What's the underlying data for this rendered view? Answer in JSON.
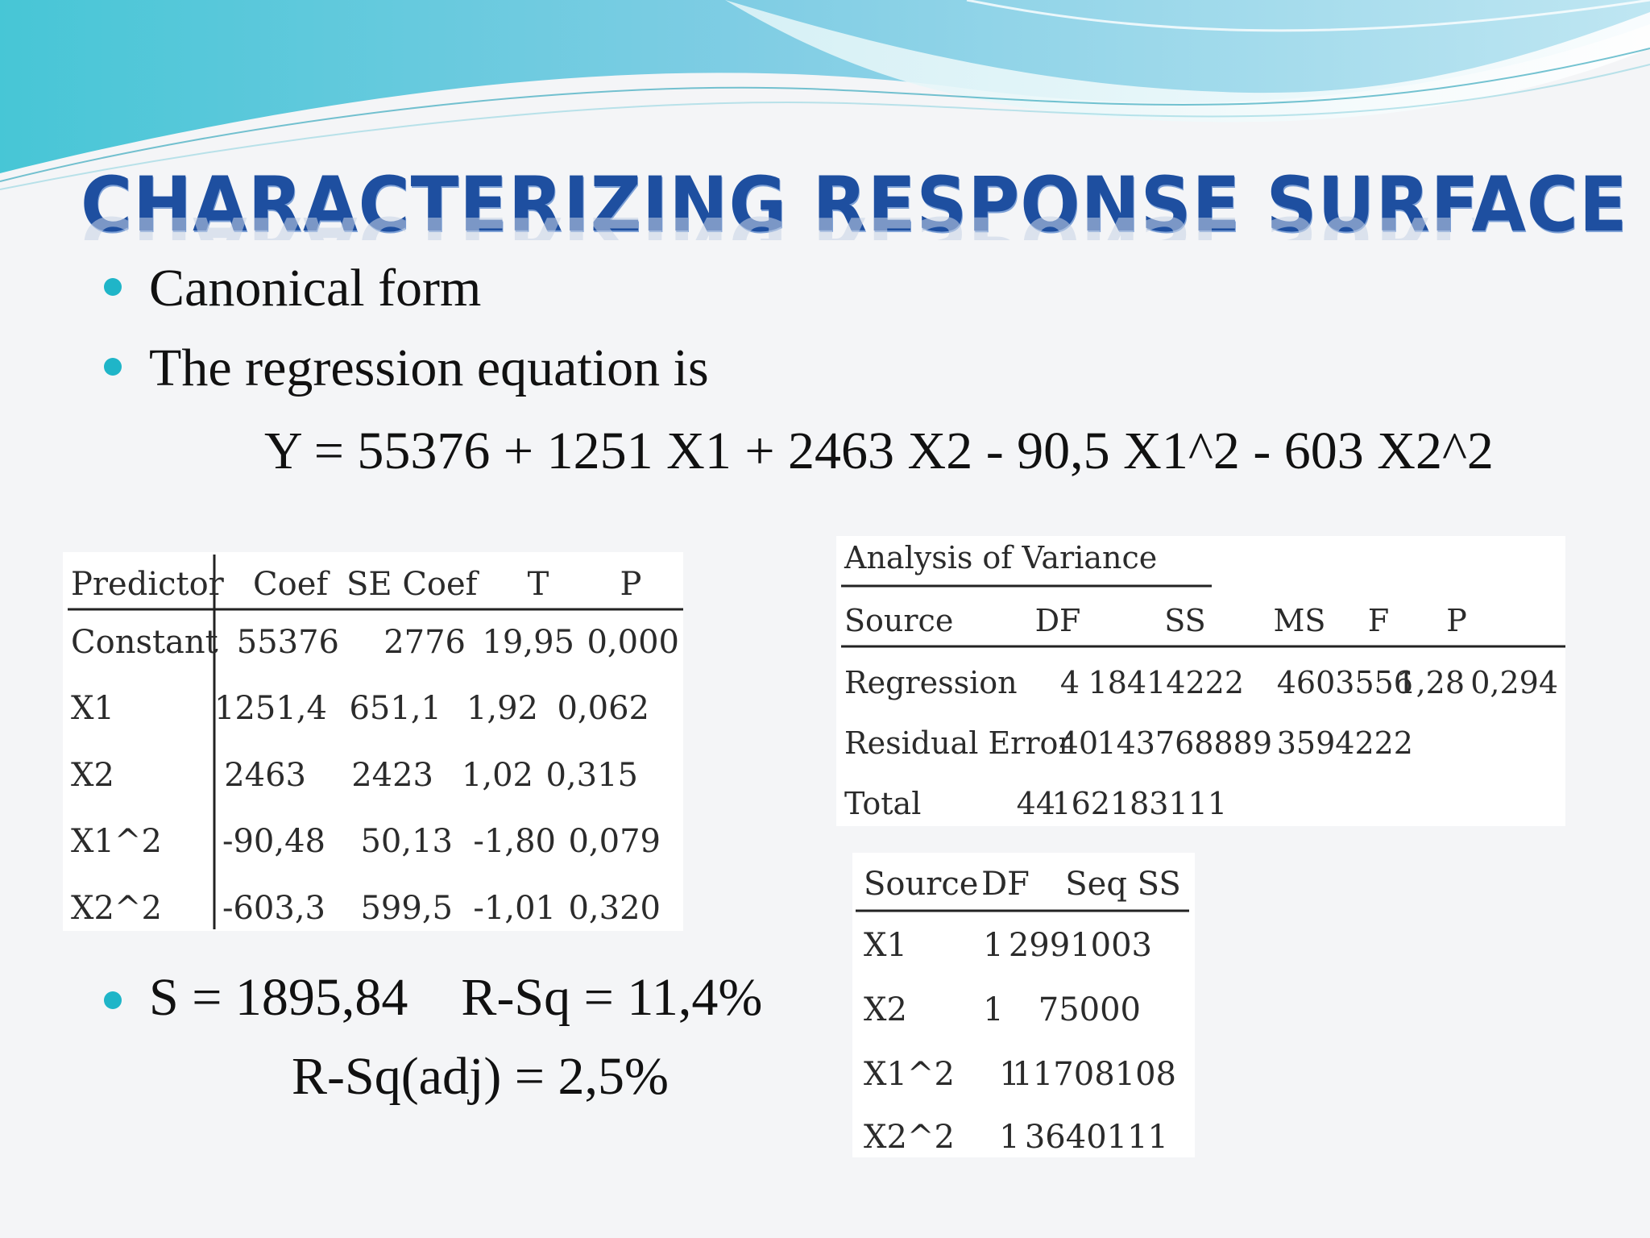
{
  "slide": {
    "title": "CHARACTERIZING RESPONSE SURFACE",
    "bullets": {
      "canonical": "Canonical form",
      "regression": "The regression equation is",
      "equation": "Y = 55376 + 1251 X1 + 2463 X2 - 90,5 X1^2 - 603 X2^2",
      "s_rsq": "S = 1895,84    R-Sq = 11,4%",
      "rsq_adj": "R-Sq(adj) = 2,5%"
    },
    "colors": {
      "title": "#1e4fa0",
      "bullet": "#1fb5c8",
      "wave": "#5fd0df"
    }
  },
  "coef_table": {
    "headers": [
      "Predictor",
      "Coef",
      "SE Coef",
      "T",
      "P"
    ],
    "rows": [
      [
        "Constant",
        "55376",
        "2776",
        "19,95",
        "0,000"
      ],
      [
        "X1",
        "1251,4",
        "651,1",
        "1,92",
        "0,062"
      ],
      [
        "X2",
        "2463",
        "2423",
        "1,02",
        "0,315"
      ],
      [
        "X1^2",
        "-90,48",
        "50,13",
        "-1,80",
        "0,079"
      ],
      [
        "X2^2",
        "-603,3",
        "599,5",
        "-1,01",
        "0,320"
      ]
    ]
  },
  "anova_table": {
    "title": "Analysis of Variance",
    "headers": [
      "Source",
      "DF",
      "SS",
      "MS",
      "F",
      "P"
    ],
    "rows": [
      [
        "Regression",
        "4",
        "18414222",
        "4603556",
        "1,28",
        "0,294"
      ],
      [
        "Residual Error",
        "40",
        "143768889",
        "3594222",
        "",
        ""
      ],
      [
        "Total",
        "44",
        "162183111",
        "",
        "",
        ""
      ]
    ]
  },
  "seq_table": {
    "headers": [
      "Source",
      "DF",
      "Seq SS"
    ],
    "rows": [
      [
        "X1",
        "1",
        "2991003"
      ],
      [
        "X2",
        "1",
        "75000"
      ],
      [
        "X1^2",
        "1",
        "11708108"
      ],
      [
        "X2^2",
        "1",
        "3640111"
      ]
    ]
  }
}
